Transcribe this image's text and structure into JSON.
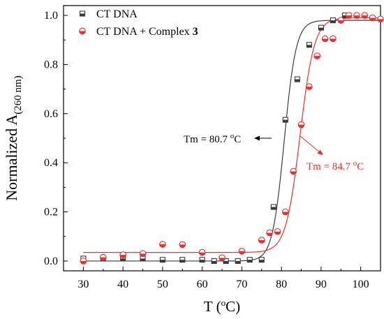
{
  "chart_data": {
    "type": "scatter",
    "title": "",
    "xlabel_main": "T (",
    "xlabel_sup": "o",
    "xlabel_unit": "C)",
    "ylabel_main": "Normalized A",
    "ylabel_sub": "(260 nm)",
    "xlim": [
      25,
      105
    ],
    "ylim": [
      -0.04,
      1.04
    ],
    "x_ticks": [
      30,
      40,
      50,
      60,
      70,
      80,
      90,
      100
    ],
    "y_ticks": [
      0.0,
      0.2,
      0.4,
      0.6,
      0.8,
      1.0
    ],
    "y_tick_labels": [
      "0.0",
      "0.2",
      "0.4",
      "0.6",
      "0.8",
      "1.0"
    ],
    "legend_position": "top-left",
    "grid": false,
    "series": [
      {
        "name": "CT DNA",
        "name_bold_suffix": "",
        "marker": "half-filled-square",
        "color": "#3a3a3a",
        "x": [
          30,
          35,
          40,
          45,
          50,
          55,
          60,
          63,
          66,
          69,
          72,
          75,
          78,
          81,
          84,
          87,
          90,
          93,
          96
        ],
        "y": [
          0.01,
          0.01,
          0.01,
          0.01,
          0.005,
          0.005,
          0.005,
          0.0,
          0.0,
          0.0,
          0.005,
          0.005,
          0.22,
          0.575,
          0.74,
          0.88,
          0.95,
          0.98,
          1.0
        ],
        "fit": {
          "bottom": 0.0,
          "top": 0.98,
          "tm": 80.7,
          "slope": 1.5
        }
      },
      {
        "name": "CT DNA + Complex ",
        "name_bold_suffix": "3",
        "marker": "half-filled-circle",
        "color": "#e8312f",
        "x": [
          30,
          35,
          40,
          45,
          50,
          55,
          60,
          65,
          70,
          75,
          77,
          79,
          81,
          83,
          85,
          87,
          89,
          91,
          93,
          95,
          97,
          99,
          101,
          103,
          105
        ],
        "y": [
          0.0,
          0.015,
          0.025,
          0.03,
          0.068,
          0.067,
          0.035,
          0.013,
          0.04,
          0.085,
          0.115,
          0.12,
          0.2,
          0.365,
          0.555,
          0.71,
          0.835,
          0.905,
          0.905,
          0.98,
          1.0,
          1.0,
          1.0,
          0.99,
          0.985
        ],
        "fit": {
          "bottom": 0.035,
          "top": 0.99,
          "tm": 84.7,
          "slope": 1.8
        }
      }
    ],
    "annotations": [
      {
        "text_main": "Tm = 80.7 ",
        "text_sup": "o",
        "text_unit": "C",
        "color": "#000000",
        "points_to": [
          79.5,
          0.49
        ]
      },
      {
        "text_main": "Tm = 84.7 ",
        "text_sup": "o",
        "text_unit": "C",
        "color": "#e8312f",
        "points_to": [
          85.3,
          0.5
        ]
      }
    ]
  }
}
